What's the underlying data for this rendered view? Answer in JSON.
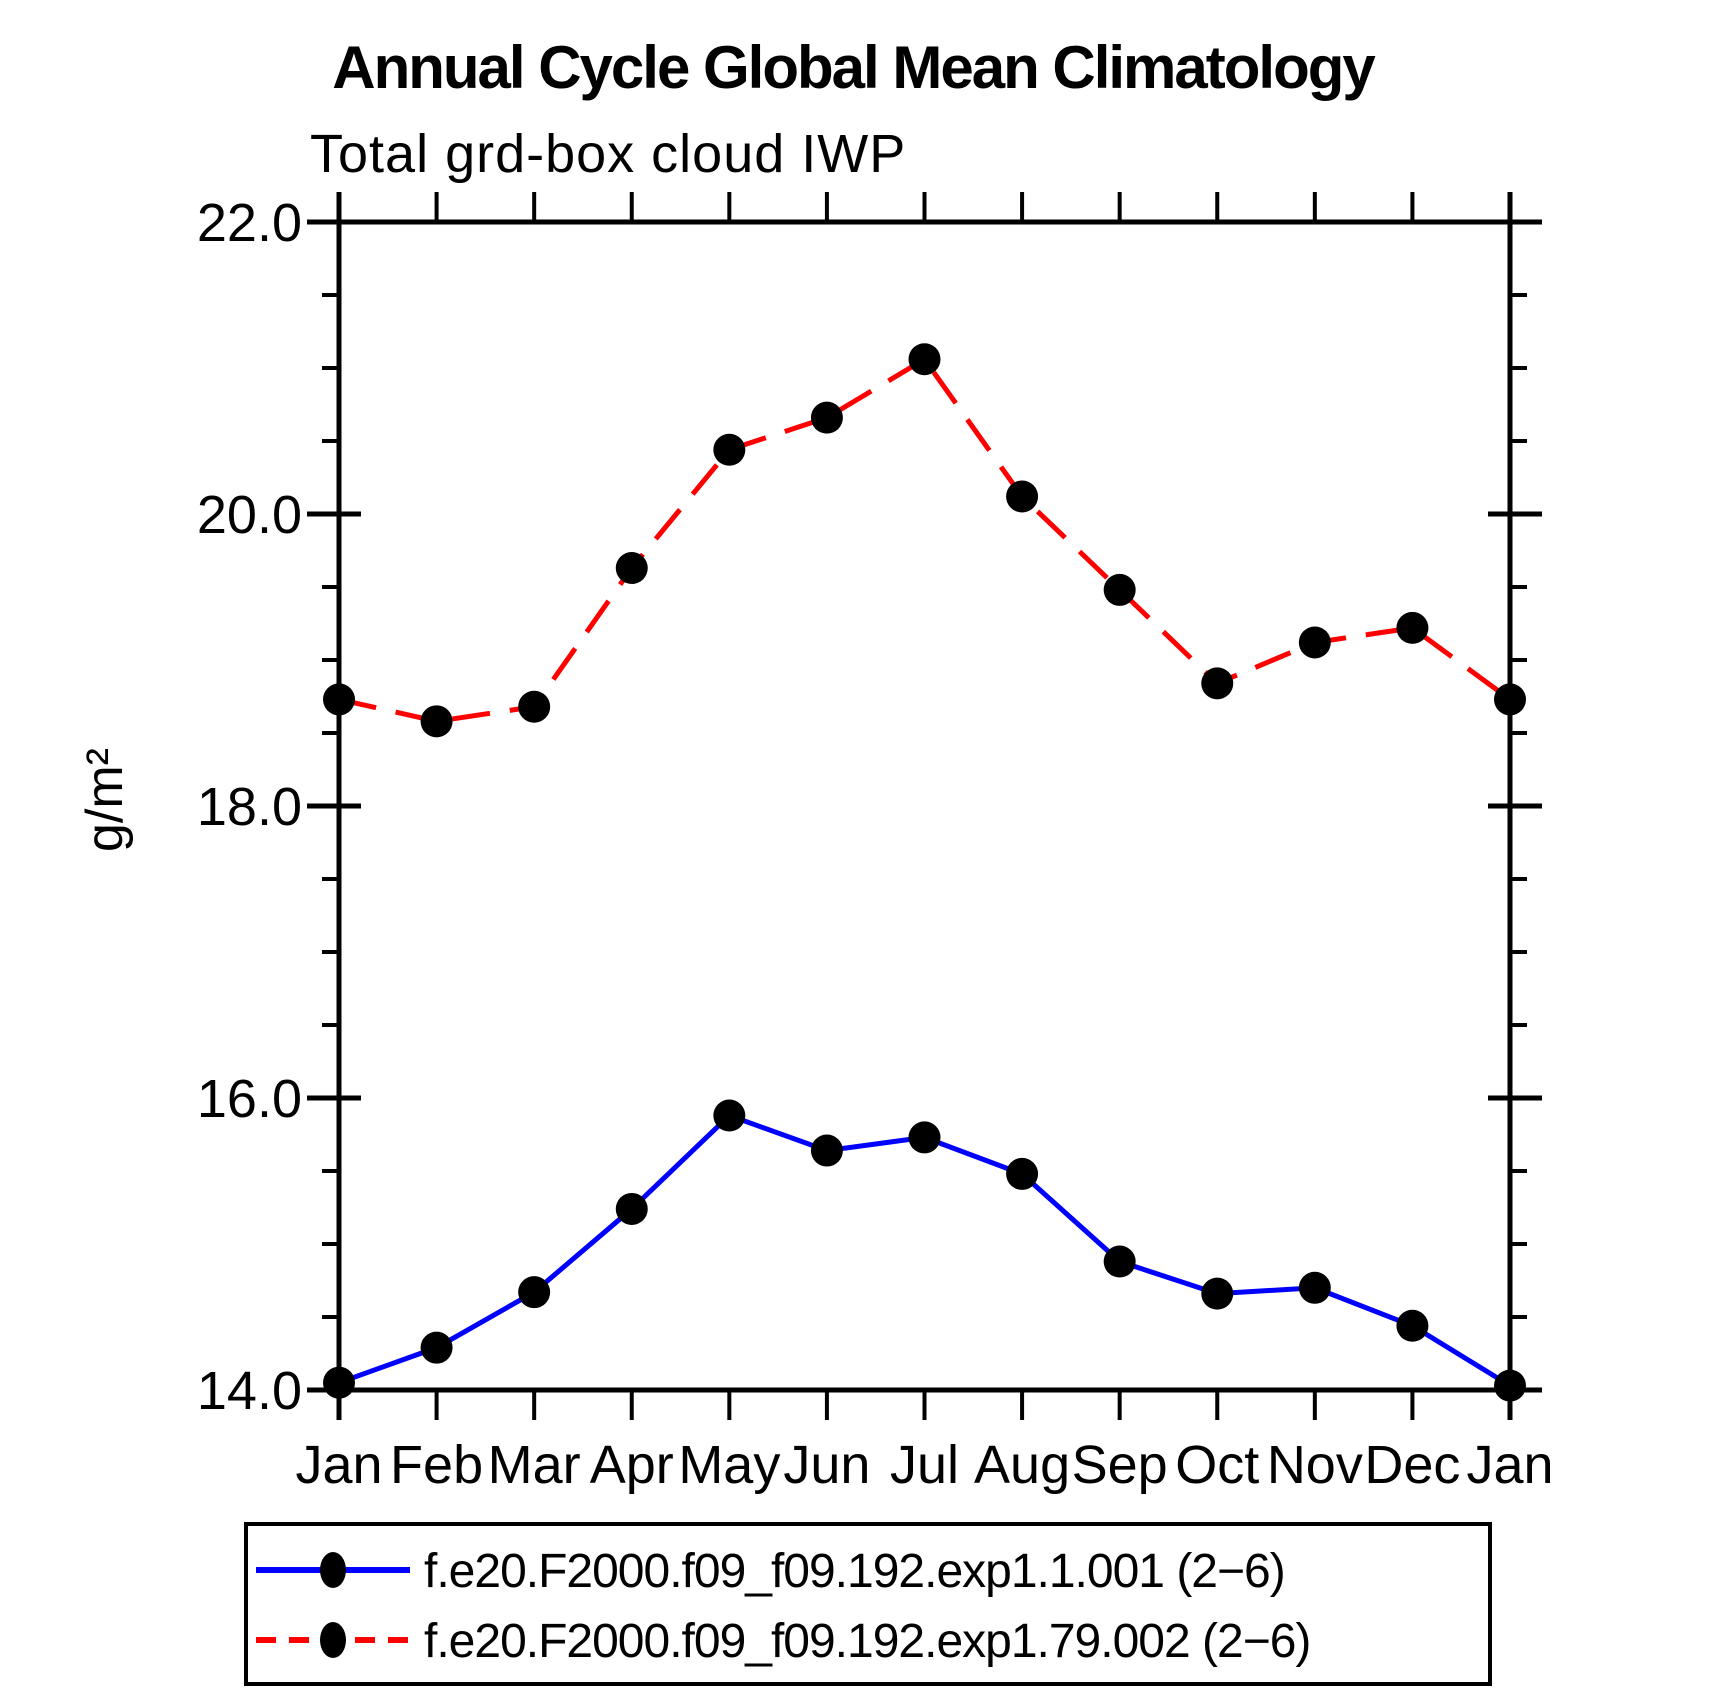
{
  "chart_data": {
    "type": "line",
    "title": "Annual Cycle Global Mean Climatology",
    "subtitle": "Total grd-box cloud IWP",
    "ylabel": "g/m²",
    "x_categories": [
      "Jan",
      "Feb",
      "Mar",
      "Apr",
      "May",
      "Jun",
      "Jul",
      "Aug",
      "Sep",
      "Oct",
      "Nov",
      "Dec",
      "Jan"
    ],
    "ylim": [
      14.0,
      22.0
    ],
    "ytick_major": [
      14.0,
      16.0,
      18.0,
      20.0,
      22.0
    ],
    "ytick_major_labels": [
      "14.0",
      "16.0",
      "18.0",
      "20.0",
      "22.0"
    ],
    "ytick_minor_interval": 0.5,
    "grid": false,
    "legend_position": "bottom-box",
    "axis_color": "#000000",
    "marker_color": "#000000",
    "series": [
      {
        "name": "f.e20.F2000.f09_f09.192.exp1.1.001 (2−6)",
        "color": "#0000ff",
        "line_style": "solid",
        "marker": "filled-circle",
        "values": [
          14.05,
          14.29,
          14.67,
          15.24,
          15.88,
          15.64,
          15.73,
          15.48,
          14.88,
          14.66,
          14.7,
          14.44,
          14.03
        ]
      },
      {
        "name": "f.e20.F2000.f09_f09.192.exp1.79.002 (2−6)",
        "color": "#ff0000",
        "line_style": "dashed",
        "marker": "filled-circle",
        "values": [
          18.73,
          18.58,
          18.68,
          19.63,
          20.44,
          20.66,
          21.06,
          20.12,
          19.48,
          18.84,
          19.12,
          19.22,
          18.73
        ]
      }
    ]
  }
}
